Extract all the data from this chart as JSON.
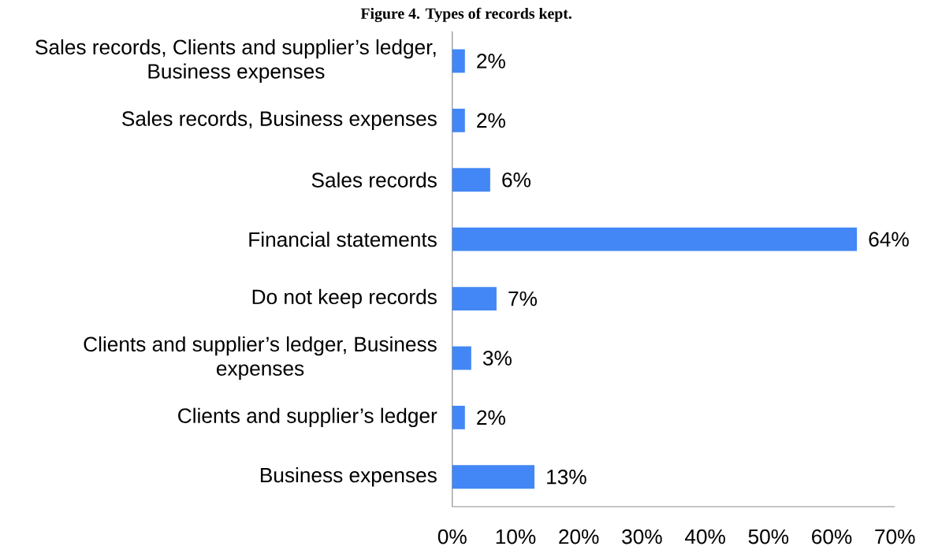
{
  "chart_data": {
    "type": "bar",
    "orientation": "horizontal",
    "title": "Figure 4. Types of records kept.",
    "categories": [
      "Sales records, Clients and supplier’s ledger, Business expenses",
      "Sales records, Business expenses",
      "Sales records",
      "Financial statements",
      "Do not keep records",
      "Clients and supplier’s ledger, Business expenses",
      "Clients and supplier’s ledger",
      "Business expenses"
    ],
    "values": [
      2,
      2,
      6,
      64,
      7,
      3,
      2,
      13
    ],
    "value_labels": [
      "2%",
      "2%",
      "6%",
      "64%",
      "7%",
      "3%",
      "2%",
      "13%"
    ],
    "color": "#4287f5",
    "xlim": [
      0,
      70
    ],
    "xticks": [
      {
        "value": 0,
        "label": "0%"
      },
      {
        "value": 10,
        "label": "10%"
      },
      {
        "value": 20,
        "label": "20%"
      },
      {
        "value": 30,
        "label": "30%"
      },
      {
        "value": 40,
        "label": "40%"
      },
      {
        "value": 50,
        "label": "50%"
      },
      {
        "value": 60,
        "label": "60%"
      },
      {
        "value": 70,
        "label": "70%"
      }
    ],
    "grid": false
  }
}
